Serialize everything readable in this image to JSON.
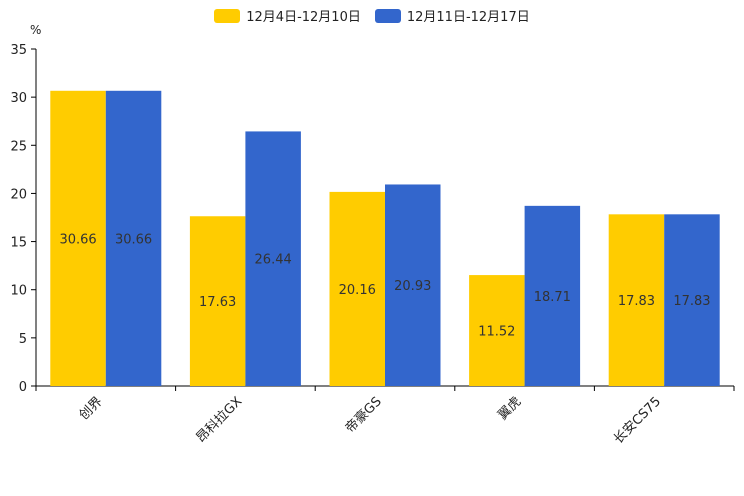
{
  "chart_data": {
    "type": "bar",
    "unit": "%",
    "categories": [
      "创界",
      "昂科拉GX",
      "帝豪GS",
      "翼虎",
      "长安CS75"
    ],
    "series": [
      {
        "name": "12月4日-12月10日",
        "color": "#ffcc00",
        "values": [
          30.66,
          17.63,
          20.16,
          11.52,
          17.83
        ]
      },
      {
        "name": "12月11日-12月17日",
        "color": "#3366cc",
        "values": [
          30.66,
          26.44,
          20.93,
          18.71,
          17.83
        ]
      }
    ],
    "ylim": [
      0,
      35
    ],
    "yticks": [
      0,
      5,
      10,
      15,
      20,
      25,
      30,
      35
    ],
    "grid": false,
    "legend_position": "top-center"
  }
}
